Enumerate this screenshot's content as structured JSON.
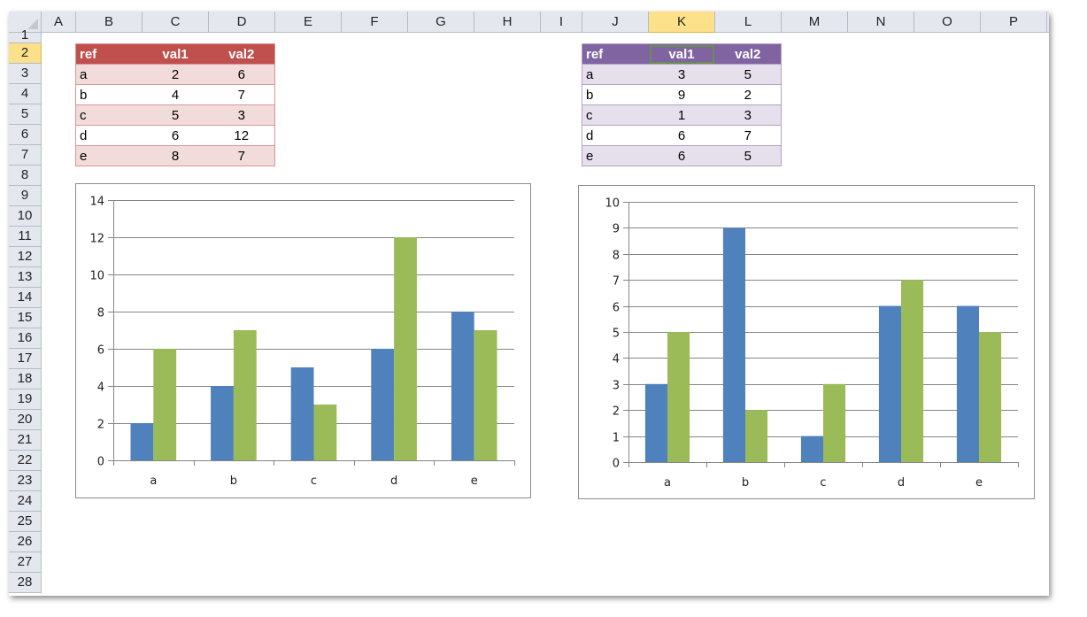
{
  "spreadsheet": {
    "columns": [
      "A",
      "B",
      "C",
      "D",
      "E",
      "F",
      "G",
      "H",
      "I",
      "J",
      "K",
      "L",
      "M",
      "N",
      "O",
      "P"
    ],
    "column_edges": [
      37,
      76,
      151,
      226,
      301,
      376,
      451,
      526,
      601,
      648,
      723,
      798,
      873,
      948,
      1023,
      1098,
      1173
    ],
    "selected_column": "K",
    "rows": [
      "1",
      "2",
      "3",
      "4",
      "5",
      "6",
      "7",
      "8",
      "9",
      "10",
      "11",
      "12",
      "13",
      "14",
      "15",
      "16",
      "17",
      "18",
      "19",
      "20",
      "21",
      "22",
      "23",
      "24",
      "25",
      "26",
      "27",
      "28"
    ],
    "selected_row": "2",
    "selected_cell": "K2"
  },
  "table_left": {
    "headers": [
      "ref",
      "val1",
      "val2"
    ],
    "rows": [
      {
        "ref": "a",
        "val1": "2",
        "val2": "6"
      },
      {
        "ref": "b",
        "val1": "4",
        "val2": "7"
      },
      {
        "ref": "c",
        "val1": "5",
        "val2": "3"
      },
      {
        "ref": "d",
        "val1": "6",
        "val2": "12"
      },
      {
        "ref": "e",
        "val1": "8",
        "val2": "7"
      }
    ],
    "header_color": "#c0504d",
    "band_color": "#f2dcdb"
  },
  "table_right": {
    "headers": [
      "ref",
      "val1",
      "val2"
    ],
    "rows": [
      {
        "ref": "a",
        "val1": "3",
        "val2": "5"
      },
      {
        "ref": "b",
        "val1": "9",
        "val2": "2"
      },
      {
        "ref": "c",
        "val1": "1",
        "val2": "3"
      },
      {
        "ref": "d",
        "val1": "6",
        "val2": "7"
      },
      {
        "ref": "e",
        "val1": "6",
        "val2": "5"
      }
    ],
    "header_color": "#8064a2",
    "band_color": "#e5e0ec"
  },
  "chart_data": [
    {
      "type": "bar",
      "title": "",
      "xlabel": "",
      "ylabel": "",
      "categories": [
        "a",
        "b",
        "c",
        "d",
        "e"
      ],
      "series": [
        {
          "name": "val1",
          "values": [
            2,
            4,
            5,
            6,
            8
          ],
          "color": "#4f81bd"
        },
        {
          "name": "val2",
          "values": [
            6,
            7,
            3,
            12,
            7
          ],
          "color": "#9bbb59"
        }
      ],
      "ylim": [
        0,
        14
      ],
      "yticks": [
        0,
        2,
        4,
        6,
        8,
        10,
        12,
        14
      ],
      "grid": true,
      "legend": "none"
    },
    {
      "type": "bar",
      "title": "",
      "xlabel": "",
      "ylabel": "",
      "categories": [
        "a",
        "b",
        "c",
        "d",
        "e"
      ],
      "series": [
        {
          "name": "val1",
          "values": [
            3,
            9,
            1,
            6,
            6
          ],
          "color": "#4f81bd"
        },
        {
          "name": "val2",
          "values": [
            5,
            2,
            3,
            7,
            5
          ],
          "color": "#9bbb59"
        }
      ],
      "ylim": [
        0,
        10
      ],
      "yticks": [
        0,
        1,
        2,
        3,
        4,
        5,
        6,
        7,
        8,
        9,
        10
      ],
      "grid": true,
      "legend": "none"
    }
  ]
}
